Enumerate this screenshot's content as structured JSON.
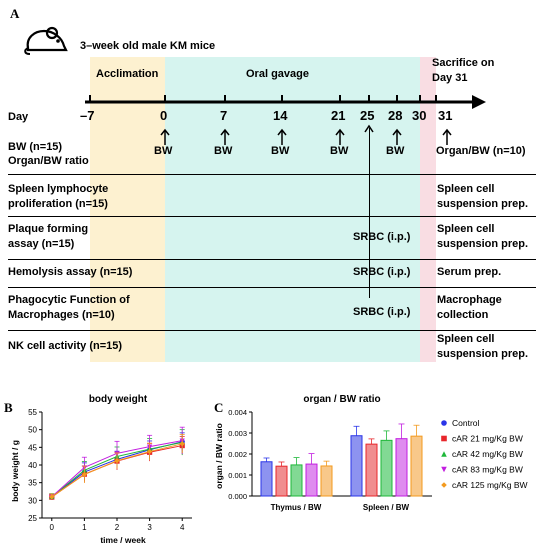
{
  "panelA": {
    "letter": "A",
    "header": "3–week old male KM mice",
    "acclimation": "Acclimation",
    "oral_gavage": "Oral gavage",
    "sacrifice_line1": "Sacrifice on",
    "sacrifice_line2": "Day 31",
    "day_label": "Day",
    "days": [
      "–7",
      "0",
      "7",
      "14",
      "21",
      "25",
      "28",
      "30",
      "31"
    ],
    "bw_group": "BW (n=15)",
    "organ_ratio": "Organ/BW ratio",
    "bw_marks": [
      "BW",
      "BW",
      "BW",
      "BW",
      "BW",
      "BW"
    ],
    "organ_bw_end": "Organ/BW (n=10)",
    "rows": [
      {
        "label1": "Spleen lymphocyte",
        "label2": "proliferation (n=15)",
        "mid": "",
        "end1": "Spleen cell",
        "end2": "suspension prep."
      },
      {
        "label1": "Plaque forming",
        "label2": "assay (n=15)",
        "mid": "SRBC (i.p.)",
        "end1": "Spleen cell",
        "end2": "suspension prep."
      },
      {
        "label1": "Hemolysis assay (n=15)",
        "label2": "",
        "mid": "SRBC (i.p.)",
        "end1": "Serum prep.",
        "end2": ""
      },
      {
        "label1": "Phagocytic Function of",
        "label2": "Macrophages (n=10)",
        "mid": "SRBC (i.p.)",
        "end1": "Macrophage",
        "end2": "collection"
      },
      {
        "label1": "NK cell activity (n=15)",
        "label2": "",
        "mid": "",
        "end1": "Spleen cell",
        "end2": "suspension prep."
      }
    ],
    "colors": {
      "acclimation": "#fdf1d0",
      "gavage": "#d6f4ef",
      "sacrifice": "#f9dde3"
    }
  },
  "panelB": {
    "letter": "B",
    "chart_data": {
      "type": "line",
      "title": "body weight",
      "xlabel": "time / week",
      "ylabel": "body weight / g",
      "x": [
        0,
        1,
        2,
        3,
        4
      ],
      "xlim": [
        -0.3,
        4.3
      ],
      "ylim": [
        25,
        55
      ],
      "yticks": [
        25,
        30,
        35,
        40,
        45,
        50,
        55
      ],
      "series": [
        {
          "name": "Control",
          "color": "#1f2de0",
          "marker": "circle",
          "values": [
            30.9,
            38.0,
            41.6,
            44.3,
            46.6
          ],
          "err": [
            0.8,
            2.6,
            2.3,
            2.5,
            2.5
          ]
        },
        {
          "name": "cAR 21 mg/Kg BW",
          "color": "#e8262b",
          "marker": "square",
          "values": [
            30.9,
            37.4,
            41.1,
            43.6,
            45.5
          ],
          "err": [
            0.8,
            2.3,
            2.5,
            2.5,
            2.6
          ]
        },
        {
          "name": "cAR 42 mg/Kg BW",
          "color": "#1fb83a",
          "marker": "triangle-up",
          "values": [
            31.0,
            38.5,
            42.4,
            44.5,
            46.4
          ],
          "err": [
            0.9,
            2.5,
            2.7,
            3.0,
            3.6
          ]
        },
        {
          "name": "cAR 83 mg/Kg BW",
          "color": "#c21ee0",
          "marker": "triangle-down",
          "values": [
            31.0,
            39.3,
            43.3,
            45.2,
            46.9
          ],
          "err": [
            0.8,
            2.9,
            3.4,
            3.2,
            3.8
          ]
        },
        {
          "name": "cAR 125 mg/Kg BW",
          "color": "#f39a1e",
          "marker": "diamond",
          "values": [
            31.0,
            37.3,
            41.2,
            43.8,
            46.0
          ],
          "err": [
            0.8,
            2.4,
            2.2,
            2.4,
            2.6
          ]
        }
      ]
    }
  },
  "panelC": {
    "letter": "C",
    "chart_data": {
      "type": "bar",
      "title": "organ / BW ratio",
      "ylabel": "organ / BW ratio",
      "categories": [
        "Thymus / BW",
        "Spleen / BW"
      ],
      "ylim": [
        0,
        0.004
      ],
      "yticks": [
        "0.000",
        "0.001",
        "0.002",
        "0.003",
        "0.004"
      ],
      "series": [
        {
          "name": "Control",
          "color": "#2a35e8",
          "fill": "#8d93f0",
          "values": [
            0.00163,
            0.00287
          ],
          "err": [
            0.00018,
            0.00045
          ]
        },
        {
          "name": "cAR 21 mg/Kg BW",
          "color": "#e8262b",
          "fill": "#f08d8f",
          "values": [
            0.00142,
            0.00247
          ],
          "err": [
            0.0002,
            0.00025
          ]
        },
        {
          "name": "cAR 42 mg/Kg BW",
          "color": "#1fb83a",
          "fill": "#82d994",
          "values": [
            0.00148,
            0.00265
          ],
          "err": [
            0.00035,
            0.00045
          ]
        },
        {
          "name": "cAR 83 mg/Kg BW",
          "color": "#c21ee0",
          "fill": "#df8bef",
          "values": [
            0.00152,
            0.00273
          ],
          "err": [
            0.0005,
            0.0007
          ]
        },
        {
          "name": "cAR 125 mg/Kg BW",
          "color": "#f39a1e",
          "fill": "#f8c88a",
          "values": [
            0.00143,
            0.00285
          ],
          "err": [
            0.00023,
            0.00052
          ]
        }
      ]
    }
  }
}
